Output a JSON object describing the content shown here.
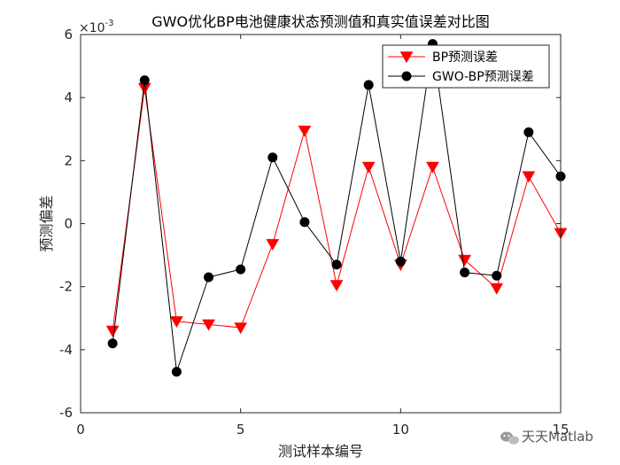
{
  "chart_data": {
    "type": "line",
    "title": "GWO优化BP电池健康状态预测值和真实值误差对比图",
    "xlabel": "测试样本编号",
    "ylabel": "预测偏差",
    "y_exponent_label": "×10",
    "y_exponent_power": "-3",
    "xlim": [
      0,
      15
    ],
    "ylim": [
      -6,
      6
    ],
    "xticks": [
      0,
      5,
      10,
      15
    ],
    "yticks": [
      -6,
      -4,
      -2,
      0,
      2,
      4,
      6
    ],
    "grid": false,
    "legend_position": "top-right",
    "x": [
      1,
      2,
      3,
      4,
      5,
      6,
      7,
      8,
      9,
      10,
      11,
      12,
      13,
      14,
      15
    ],
    "series": [
      {
        "name": "BP预测误差",
        "color": "#ff0000",
        "marker": "triangle-down",
        "values": [
          -3.4,
          4.3,
          -3.1,
          -3.2,
          -3.3,
          -0.65,
          2.95,
          -1.95,
          1.8,
          -1.3,
          1.8,
          -1.15,
          -2.05,
          1.5,
          -0.3
        ]
      },
      {
        "name": "GWO-BP预测误差",
        "color": "#000000",
        "marker": "circle",
        "values": [
          -3.8,
          4.55,
          -4.7,
          -1.7,
          -1.45,
          2.1,
          0.05,
          -1.3,
          4.4,
          -1.2,
          5.7,
          -1.55,
          -1.65,
          2.9,
          1.5
        ]
      }
    ]
  },
  "watermark": {
    "text": "天天Matlab",
    "icon": "wechat-icon"
  }
}
